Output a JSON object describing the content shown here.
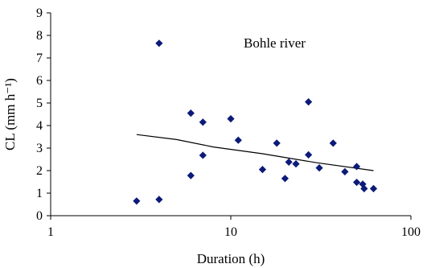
{
  "chart_data": {
    "type": "scatter",
    "title": "",
    "annotation": "Bohle river",
    "xlabel": "Duration (h)",
    "ylabel": "CL (mm h⁻¹)",
    "x_scale": "log",
    "xlim": [
      1,
      100
    ],
    "ylim": [
      0,
      9
    ],
    "x_ticks": [
      1,
      10,
      100
    ],
    "x_tick_labels": [
      "1",
      "10",
      "100"
    ],
    "y_ticks": [
      0,
      1,
      2,
      3,
      4,
      5,
      6,
      7,
      8,
      9
    ],
    "y_tick_labels": [
      "0",
      "1",
      "2",
      "3",
      "4",
      "5",
      "6",
      "7",
      "8",
      "9"
    ],
    "grid": false,
    "colors": {
      "points": "#0c1a78",
      "trend": "#000000",
      "axes": "#000000"
    },
    "series": [
      {
        "type": "scatter",
        "marker": "diamond",
        "points": [
          {
            "x": 3.0,
            "y": 0.65
          },
          {
            "x": 4.0,
            "y": 0.72
          },
          {
            "x": 4.0,
            "y": 7.65
          },
          {
            "x": 6.0,
            "y": 4.55
          },
          {
            "x": 6.0,
            "y": 1.78
          },
          {
            "x": 7.0,
            "y": 4.15
          },
          {
            "x": 7.0,
            "y": 2.68
          },
          {
            "x": 10.0,
            "y": 4.3
          },
          {
            "x": 11.0,
            "y": 3.35
          },
          {
            "x": 15.0,
            "y": 2.05
          },
          {
            "x": 18.0,
            "y": 3.22
          },
          {
            "x": 20.0,
            "y": 1.65
          },
          {
            "x": 21.0,
            "y": 2.38
          },
          {
            "x": 23.0,
            "y": 2.3
          },
          {
            "x": 27.0,
            "y": 5.05
          },
          {
            "x": 27.0,
            "y": 2.7
          },
          {
            "x": 31.0,
            "y": 2.12
          },
          {
            "x": 37.0,
            "y": 3.22
          },
          {
            "x": 43.0,
            "y": 1.95
          },
          {
            "x": 50.0,
            "y": 2.18
          },
          {
            "x": 50.0,
            "y": 1.48
          },
          {
            "x": 54.0,
            "y": 1.4
          },
          {
            "x": 55.0,
            "y": 1.2
          },
          {
            "x": 62.0,
            "y": 1.2
          }
        ]
      },
      {
        "type": "line",
        "style": "trendline",
        "points": [
          {
            "x": 3.0,
            "y": 3.6
          },
          {
            "x": 5.0,
            "y": 3.38
          },
          {
            "x": 8.0,
            "y": 3.05
          },
          {
            "x": 15.0,
            "y": 2.75
          },
          {
            "x": 30.0,
            "y": 2.35
          },
          {
            "x": 62.0,
            "y": 2.0
          }
        ]
      }
    ]
  }
}
